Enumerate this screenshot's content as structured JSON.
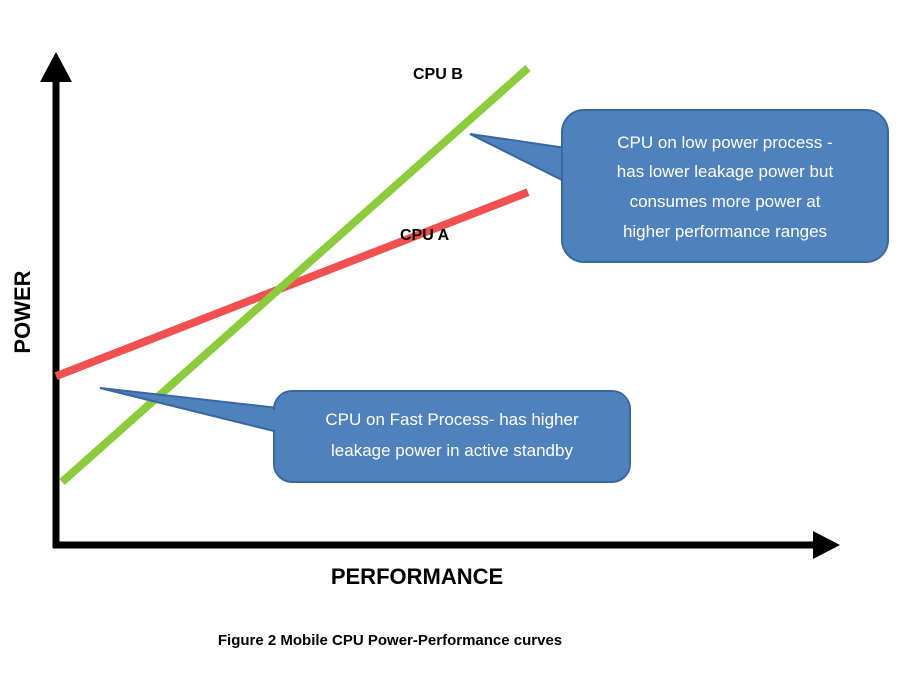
{
  "caption": "Figure 2 Mobile CPU Power-Performance curves",
  "chart_data": {
    "type": "line",
    "xlabel": "PERFORMANCE",
    "ylabel": "POWER",
    "grid": false,
    "axis_ticks": false,
    "series": [
      {
        "name": "CPU A",
        "color": "#f05050",
        "x": [
          0,
          1
        ],
        "y": [
          0.33,
          0.73
        ]
      },
      {
        "name": "CPU B",
        "color": "#8ccc3c",
        "x": [
          0,
          1
        ],
        "y": [
          0.1,
          1.0
        ]
      }
    ],
    "annotations": [
      {
        "target": "CPU B",
        "lines": [
          "CPU on low power process -",
          "has lower leakage power but",
          "consumes more power at",
          "higher performance ranges"
        ]
      },
      {
        "target": "CPU A",
        "lines": [
          "CPU on Fast Process- has higher",
          "leakage power in active standby"
        ]
      }
    ]
  }
}
